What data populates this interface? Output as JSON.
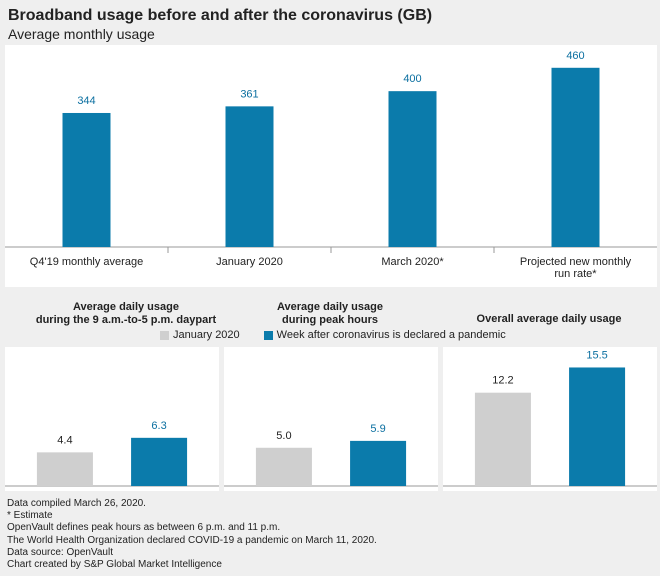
{
  "header": {
    "title": "Broadband usage before and after the coronavirus (GB)",
    "subtitle": "Average monthly usage"
  },
  "colors": {
    "blue": "#0b7bab",
    "gray": "#cfcfcf",
    "label_blue": "#0b6fa0"
  },
  "chart_data": [
    {
      "type": "bar",
      "title": "",
      "categories": [
        "Q4'19 monthly average",
        "January 2020",
        "March 2020*",
        "Projected new monthly run rate*"
      ],
      "values": [
        344,
        361,
        400,
        460
      ],
      "ylim": [
        0,
        480
      ]
    },
    {
      "type": "bar",
      "title": "Average daily usage during the 9 a.m.-to-5 p.m. daypart",
      "series": [
        {
          "name": "January 2020",
          "values": [
            4.4
          ]
        },
        {
          "name": "Week after coronavirus is declared a pandemic",
          "values": [
            6.3
          ]
        }
      ],
      "ylim": [
        0,
        17
      ]
    },
    {
      "type": "bar",
      "title": "Average daily usage during peak hours",
      "series": [
        {
          "name": "January 2020",
          "values": [
            5.0
          ]
        },
        {
          "name": "Week after coronavirus is declared a pandemic",
          "values": [
            5.9
          ]
        }
      ],
      "ylim": [
        0,
        17
      ]
    },
    {
      "type": "bar",
      "title": "Overall average daily usage",
      "series": [
        {
          "name": "January 2020",
          "values": [
            12.2
          ]
        },
        {
          "name": "Week after coronavirus is declared a pandemic",
          "values": [
            15.5
          ]
        }
      ],
      "ylim": [
        0,
        17
      ]
    }
  ],
  "sub_titles": {
    "daypart_line1": "Average daily usage",
    "daypart_line2": "during the 9 a.m.-to-5 p.m. daypart",
    "peak_line1": "Average daily usage",
    "peak_line2": "during peak hours",
    "overall": "Overall average daily usage"
  },
  "legend": {
    "jan": "January 2020",
    "week": "Week after coronavirus is declared a pandemic"
  },
  "notes": [
    "Data compiled March 26, 2020.",
    "* Estimate",
    "OpenVault defines peak hours as between 6 p.m. and 11 p.m.",
    "The World Health Organization declared COVID-19 a pandemic on March 11, 2020.",
    "Data source: OpenVault",
    "Chart created by S&P Global Market Intelligence"
  ]
}
